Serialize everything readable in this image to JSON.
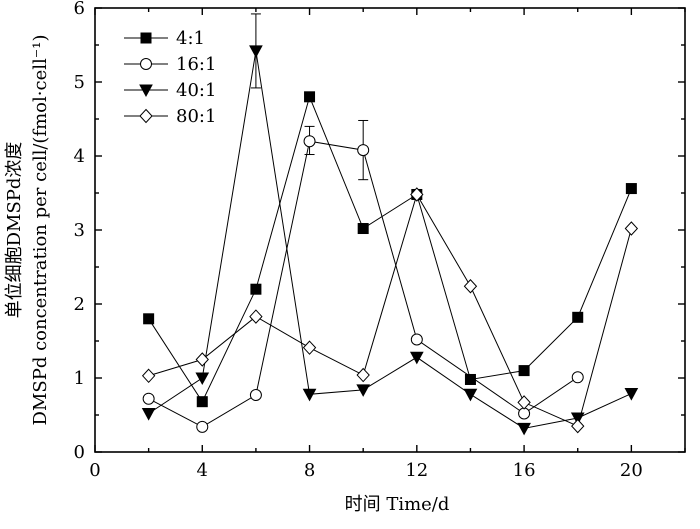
{
  "chart_data": {
    "type": "line",
    "title": "",
    "xlabel": "时间 Time/d",
    "ylabel_line1": "单位细胞DMSPd浓度",
    "ylabel_line2": "DMSPd concentration per cell/(fmol·cell⁻¹)",
    "xlim": [
      0,
      22
    ],
    "ylim": [
      0,
      6
    ],
    "xticks": [
      0,
      4,
      8,
      12,
      16,
      20
    ],
    "yticks": [
      0,
      1,
      2,
      3,
      4,
      5,
      6
    ],
    "grid": false,
    "legend_position": "top-left",
    "series": [
      {
        "name": "4:1",
        "marker": "square-filled",
        "x": [
          2,
          4,
          6,
          8,
          10,
          12,
          14,
          16,
          18,
          20
        ],
        "y": [
          1.8,
          0.68,
          2.2,
          4.8,
          3.02,
          3.48,
          0.98,
          1.1,
          1.82,
          3.56
        ]
      },
      {
        "name": "16:1",
        "marker": "circle-open",
        "x": [
          2,
          4,
          6,
          8,
          10,
          12,
          16,
          18
        ],
        "y": [
          0.72,
          0.34,
          0.77,
          4.2,
          4.08,
          1.52,
          0.52,
          1.01
        ],
        "errors": [
          {
            "x": 8,
            "upper": 4.4,
            "lower": 4.02
          },
          {
            "x": 10,
            "upper": 4.48,
            "lower": 3.68
          }
        ]
      },
      {
        "name": "40:1",
        "marker": "triangle-down-filled",
        "x": [
          2,
          4,
          6,
          8,
          10,
          12,
          14,
          16,
          18,
          20
        ],
        "y": [
          0.52,
          1.0,
          5.42,
          0.78,
          0.84,
          1.28,
          0.78,
          0.32,
          0.46,
          0.79
        ],
        "errors": [
          {
            "x": 6,
            "upper": 5.92,
            "lower": 4.92
          }
        ]
      },
      {
        "name": "80:1",
        "marker": "diamond-open",
        "x": [
          2,
          4,
          6,
          8,
          10,
          12,
          14,
          16,
          18,
          20
        ],
        "y": [
          1.03,
          1.25,
          1.83,
          1.41,
          1.04,
          3.48,
          2.24,
          0.67,
          0.35,
          3.02
        ]
      }
    ]
  }
}
